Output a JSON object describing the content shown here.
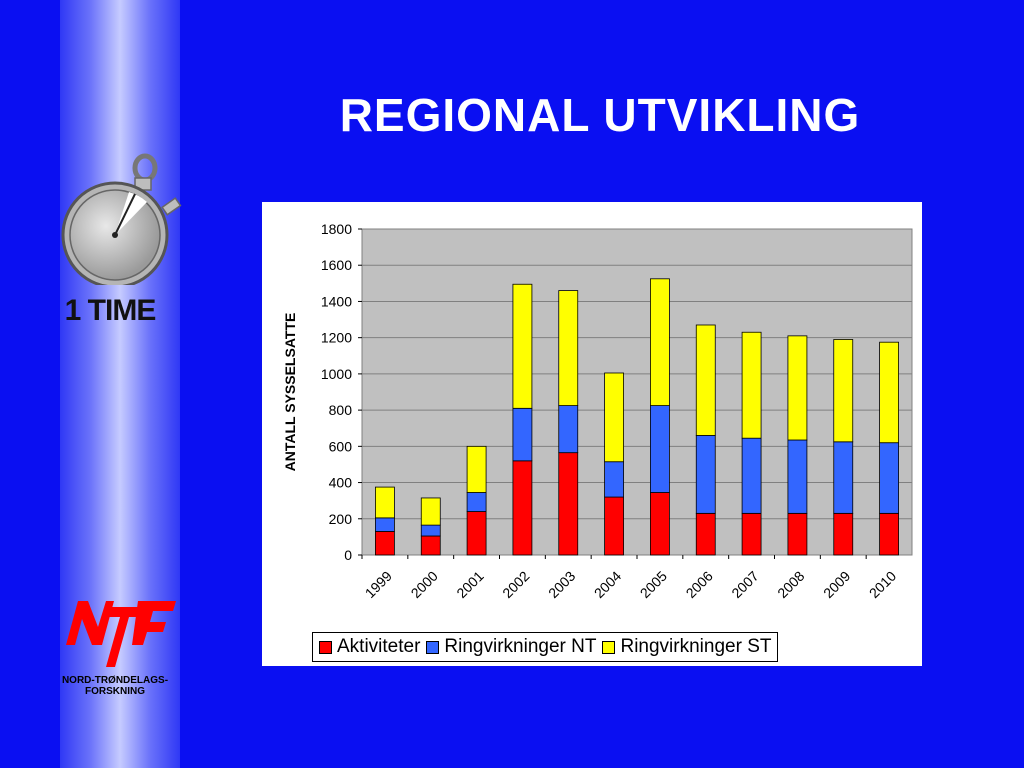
{
  "slide": {
    "title": "REGIONAL UTVIKLING",
    "time_label": "1 TIME",
    "logo": {
      "name": "NTF",
      "caption_line1": "NORD-TRØNDELAGS-",
      "caption_line2": "FORSKNING"
    }
  },
  "chart_data": {
    "type": "bar",
    "stacked": true,
    "categories": [
      "1999",
      "2000",
      "2001",
      "2002",
      "2003",
      "2004",
      "2005",
      "2006",
      "2007",
      "2008",
      "2009",
      "2010"
    ],
    "series": [
      {
        "name": "Aktiviteter",
        "color": "#ff0000",
        "values": [
          130,
          105,
          240,
          520,
          565,
          320,
          345,
          230,
          230,
          230,
          230,
          230
        ]
      },
      {
        "name": "Ringvirkninger NT",
        "color": "#3366ff",
        "values": [
          75,
          60,
          105,
          290,
          260,
          195,
          480,
          430,
          415,
          405,
          395,
          390
        ]
      },
      {
        "name": "Ringvirkninger ST",
        "color": "#ffff00",
        "values": [
          170,
          150,
          255,
          685,
          635,
          490,
          700,
          610,
          585,
          575,
          565,
          555
        ]
      }
    ],
    "title": "",
    "xlabel": "",
    "ylabel": "ANTALL SYSSELSATTE",
    "ylim": [
      0,
      1800
    ],
    "yticks": [
      0,
      200,
      400,
      600,
      800,
      1000,
      1200,
      1400,
      1600,
      1800
    ],
    "grid": true,
    "plot_background": "#c0c0c0",
    "legend_position": "bottom"
  }
}
